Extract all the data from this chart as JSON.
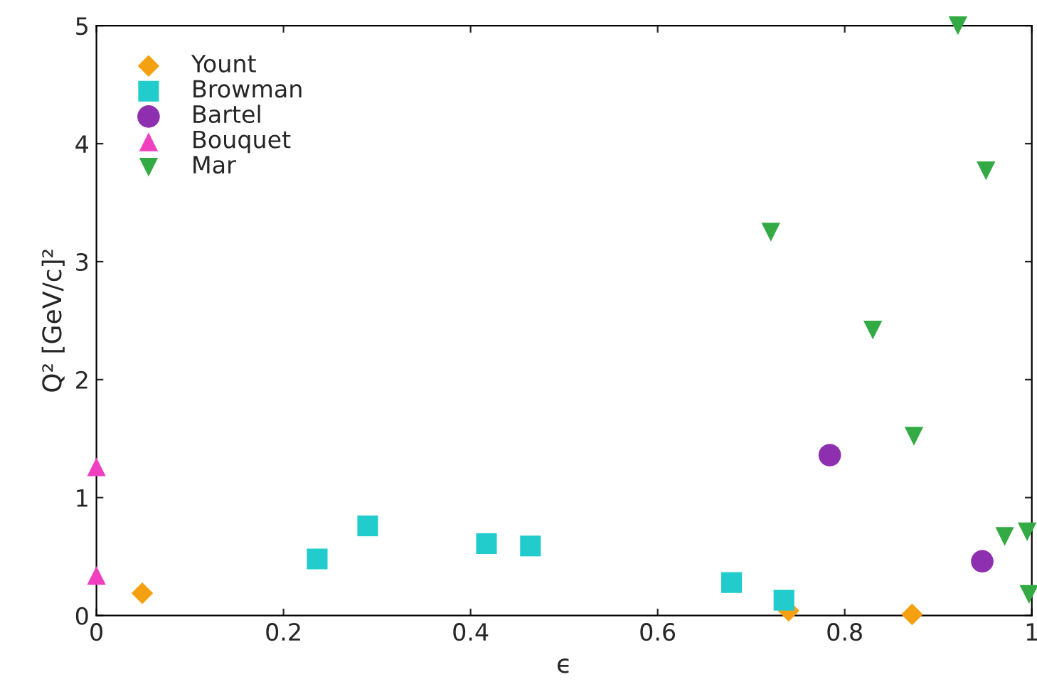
{
  "chart_data": {
    "type": "scatter",
    "xlabel": "ϵ",
    "ylabel": "Q² [GeV/c]²",
    "xlim": [
      0,
      1
    ],
    "ylim": [
      0,
      5
    ],
    "xticks": [
      0,
      0.2,
      0.4,
      0.6,
      0.8,
      1
    ],
    "yticks": [
      0,
      1,
      2,
      3,
      4,
      5
    ],
    "grid": false,
    "legend": "top left",
    "series": [
      {
        "name": "Yount",
        "color": "#f5a010",
        "marker": "diamond",
        "x": [
          0.049,
          0.74,
          0.872
        ],
        "values": [
          0.19,
          0.04,
          0.01
        ]
      },
      {
        "name": "Browman",
        "color": "#22cccc",
        "marker": "square",
        "x": [
          0.236,
          0.29,
          0.417,
          0.464,
          0.679,
          0.735
        ],
        "values": [
          0.48,
          0.76,
          0.61,
          0.59,
          0.28,
          0.13
        ]
      },
      {
        "name": "Bartel",
        "color": "#8e2fb0",
        "marker": "circle",
        "x": [
          0.784,
          0.947
        ],
        "values": [
          1.36,
          0.46
        ]
      },
      {
        "name": "Bouquet",
        "color": "#f040c0",
        "marker": "triangle",
        "x": [
          0,
          0
        ],
        "values": [
          1.26,
          0.34
        ]
      },
      {
        "name": "Mar",
        "color": "#33aa44",
        "marker": "triangle_down",
        "x": [
          0.721,
          0.83,
          0.921,
          0.874,
          0.951,
          0.971,
          0.995,
          0.997
        ],
        "values": [
          3.25,
          2.42,
          5.0,
          1.52,
          3.77,
          0.67,
          0.71,
          0.18
        ]
      }
    ]
  }
}
